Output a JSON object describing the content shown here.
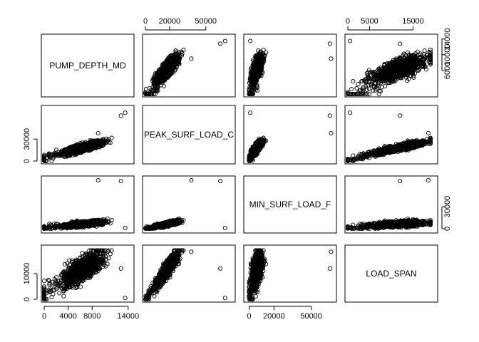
{
  "chart_data": {
    "type": "scatter",
    "variables": [
      "PUMP_DEPTH_MD",
      "PEAK_SURF_LOAD_C",
      "MIN_SURF_LOAD_F",
      "LOAD_SPAN"
    ],
    "ranges": {
      "PUMP_DEPTH_MD": [
        0,
        14500
      ],
      "PEAK_SURF_LOAD_C": [
        0,
        72000
      ],
      "MIN_SURF_LOAD_F": [
        -2000,
        68000
      ],
      "LOAD_SPAN": [
        0,
        20000
      ]
    },
    "ticks": {
      "PUMP_DEPTH_MD": [
        0,
        4000,
        8000,
        14000
      ],
      "PEAK_SURF_LOAD_C": [
        0,
        20000,
        50000
      ],
      "MIN_SURF_LOAD_F": [
        0,
        20000,
        50000
      ],
      "LOAD_SPAN": [
        0,
        5000,
        15000
      ]
    },
    "row_axis_ticks": {
      "PUMP_DEPTH_MD": [
        6000,
        10000,
        14000
      ],
      "PEAK_SURF_LOAD_C": [
        0,
        30000
      ],
      "MIN_SURF_LOAD_F": [
        0,
        30000
      ],
      "LOAD_SPAN": [
        0,
        10000
      ]
    },
    "axis_labels": {
      "top": [
        null,
        "0  20000  50000",
        null,
        "0  5000  15000"
      ],
      "bottom": [
        "0  4000  8000  14000",
        null,
        "0  20000  50000",
        null
      ],
      "left": [
        null,
        "0  30000",
        null,
        "0  10000"
      ],
      "right": [
        "6000  10000  14000",
        null,
        "0  30000",
        null
      ]
    },
    "point_marker": "open-circle",
    "summary_points": {
      "depth_vs_peak": [
        [
          0,
          3000
        ],
        [
          0,
          22000
        ],
        [
          2000,
          18000
        ],
        [
          4000,
          22000
        ],
        [
          6000,
          26000
        ],
        [
          8000,
          30000
        ],
        [
          10000,
          34000
        ],
        [
          12000,
          36000
        ],
        [
          14000,
          38000
        ]
      ],
      "depth_vs_min": [
        [
          0,
          1000
        ],
        [
          0,
          12000
        ],
        [
          4000,
          8000
        ],
        [
          8000,
          13000
        ],
        [
          12000,
          17000
        ],
        [
          14000,
          18000
        ]
      ],
      "depth_vs_span": [
        [
          0,
          500
        ],
        [
          2000,
          3000
        ],
        [
          4000,
          6000
        ],
        [
          6000,
          8000
        ],
        [
          8000,
          10000
        ],
        [
          10000,
          12000
        ],
        [
          12000,
          13000
        ],
        [
          14000,
          13000
        ]
      ],
      "peak_vs_min": [
        [
          5000,
          1000
        ],
        [
          20000,
          12000
        ],
        [
          30000,
          16000
        ],
        [
          40000,
          20000
        ],
        [
          60000,
          0
        ],
        [
          66000,
          2000
        ]
      ],
      "peak_vs_span": [
        [
          5000,
          1000
        ],
        [
          15000,
          6000
        ],
        [
          25000,
          10000
        ],
        [
          35000,
          14000
        ],
        [
          60000,
          18000
        ],
        [
          62000,
          1000
        ]
      ],
      "min_vs_span": [
        [
          0,
          500
        ],
        [
          5000,
          6000
        ],
        [
          10000,
          10000
        ],
        [
          20000,
          16000
        ],
        [
          66000,
          13500
        ],
        [
          66000,
          2000
        ]
      ]
    }
  }
}
